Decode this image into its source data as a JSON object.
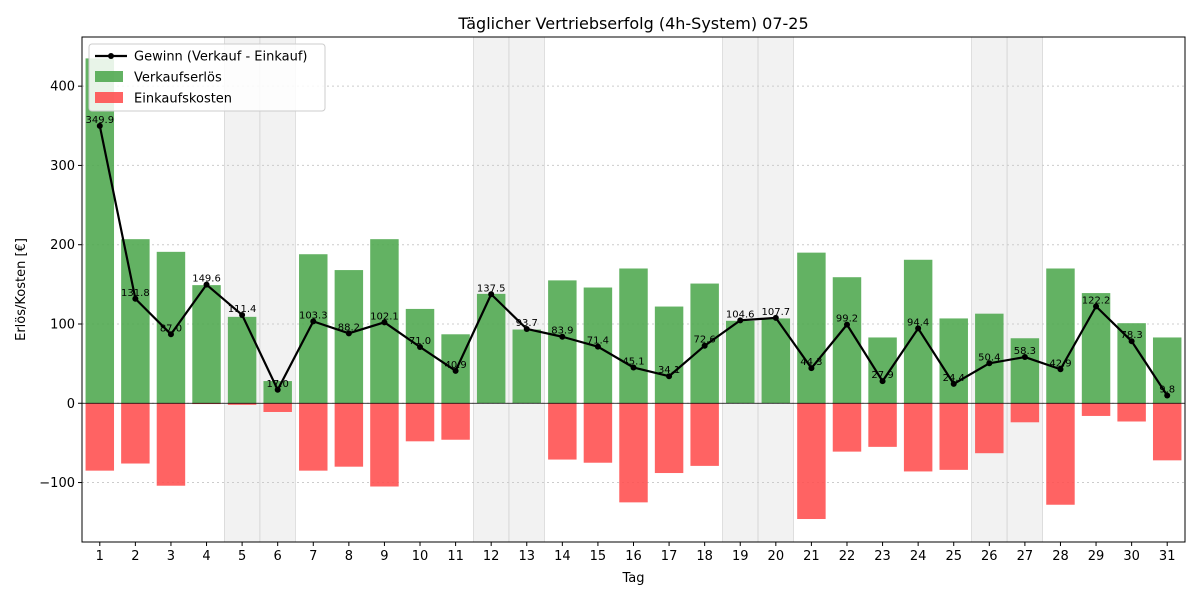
{
  "chart_data": {
    "type": "bar",
    "title": "Täglicher Vertriebserfolg (4h-System) 07-25",
    "xlabel": "Tag",
    "ylabel": "Erlös/Kosten [€]",
    "categories": [
      "1",
      "2",
      "3",
      "4",
      "5",
      "6",
      "7",
      "8",
      "9",
      "10",
      "11",
      "12",
      "13",
      "14",
      "15",
      "16",
      "17",
      "18",
      "19",
      "20",
      "21",
      "22",
      "23",
      "24",
      "25",
      "26",
      "27",
      "28",
      "29",
      "30",
      "31"
    ],
    "ylim": [
      -175,
      462
    ],
    "yticks": [
      -100,
      0,
      100,
      200,
      300,
      400
    ],
    "grid": true,
    "legend_position": "top-left",
    "weekend_days": [
      5,
      6,
      12,
      13,
      19,
      20,
      26,
      27
    ],
    "series": [
      {
        "name": "Verkaufserlös",
        "type": "bar",
        "color": "#4ca64c",
        "values": [
          435,
          207,
          191,
          149,
          109,
          28,
          188,
          168,
          207,
          119,
          87,
          138,
          93,
          155,
          146,
          170,
          122,
          151,
          104,
          107,
          190,
          159,
          83,
          181,
          107,
          113,
          82,
          170,
          139,
          101,
          83
        ]
      },
      {
        "name": "Einkaufskosten",
        "type": "bar",
        "color": "#ff4c4c",
        "values": [
          -85,
          -76,
          -104,
          -1,
          -2,
          -11,
          -85,
          -80,
          -105,
          -48,
          -46,
          0,
          0,
          -71,
          -75,
          -125,
          -88,
          -79,
          0,
          0,
          -146,
          -61,
          -55,
          -86,
          -84,
          -63,
          -24,
          -128,
          -16,
          -23,
          -72
        ]
      },
      {
        "name": "Gewinn (Verkauf - Einkauf)",
        "type": "line",
        "color": "#000000",
        "values": [
          349.9,
          131.8,
          87.0,
          149.6,
          111.4,
          17.0,
          103.3,
          88.2,
          102.1,
          71.0,
          40.9,
          137.5,
          93.7,
          83.9,
          71.4,
          45.1,
          34.1,
          72.6,
          104.6,
          107.7,
          44.3,
          99.2,
          27.9,
          94.4,
          24.4,
          50.4,
          58.3,
          42.9,
          122.2,
          78.3,
          9.8
        ],
        "labels": [
          "349.9",
          "131.8",
          "87.0",
          "149.6",
          "111.4",
          "17.0",
          "103.3",
          "88.2",
          "102.1",
          "71.0",
          "40.9",
          "137.5",
          "93.7",
          "83.9",
          "71.4",
          "45.1",
          "34.1",
          "72.6",
          "104.6",
          "107.7",
          "44.3",
          "99.2",
          "27.9",
          "94.4",
          "24.4",
          "50.4",
          "58.3",
          "42.9",
          "122.2",
          "78.3",
          "9.8"
        ]
      }
    ]
  },
  "colors": {
    "axis": "#000000",
    "grid": "#cccccc",
    "weekend_shade": "#e6e6e6"
  }
}
